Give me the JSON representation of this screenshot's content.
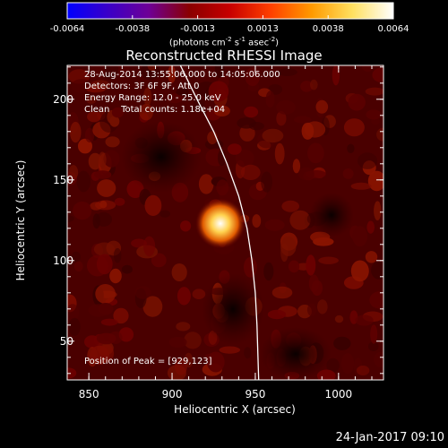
{
  "colorbar": {
    "ticks": [
      "-0.0064",
      "-0.0038",
      "-0.0013",
      "0.0013",
      "0.0038",
      "0.0064"
    ],
    "units_prefix": "(photons cm",
    "units_exp1": "-2",
    "units_mid": " s",
    "units_exp2": "-1",
    "units_mid2": " asec",
    "units_exp3": "-2",
    "units_suffix": ")",
    "range": [
      -0.0064,
      0.0064
    ],
    "colors": [
      "#0000ff",
      "#3a00c8",
      "#6e0096",
      "#8a0000",
      "#c80000",
      "#ff4000",
      "#ff9a00",
      "#ffe060",
      "#ffffff"
    ]
  },
  "info": {
    "time_range": "28-Aug-2014 13:55:06.000 to 14:05:06.000",
    "detectors": "Detectors: 3F 6F 9F, Att 0",
    "energy": "Energy Range: 12.0 - 25.0 keV",
    "clean": "Clean    Total counts: 1.18e+04"
  },
  "peak_label": "Position of Peak = [929,123]",
  "footer": "24-Jan-2017 09:10",
  "chart_data": {
    "type": "heatmap",
    "title": "Reconstructed RHESSI Image",
    "xlabel": "Heliocentric X (arcsec)",
    "ylabel": "Heliocentric Y (arcsec)",
    "xlim": [
      837,
      1027
    ],
    "ylim": [
      26,
      221
    ],
    "xticks": [
      850,
      900,
      950,
      1000
    ],
    "yticks": [
      50,
      100,
      150,
      200
    ],
    "peak_position": [
      929,
      123
    ],
    "limb_curve": [
      [
        905,
        221
      ],
      [
        915,
        200
      ],
      [
        925,
        180
      ],
      [
        933,
        160
      ],
      [
        940,
        140
      ],
      [
        945,
        120
      ],
      [
        948,
        100
      ],
      [
        950,
        80
      ],
      [
        951,
        60
      ],
      [
        952,
        26
      ]
    ]
  }
}
